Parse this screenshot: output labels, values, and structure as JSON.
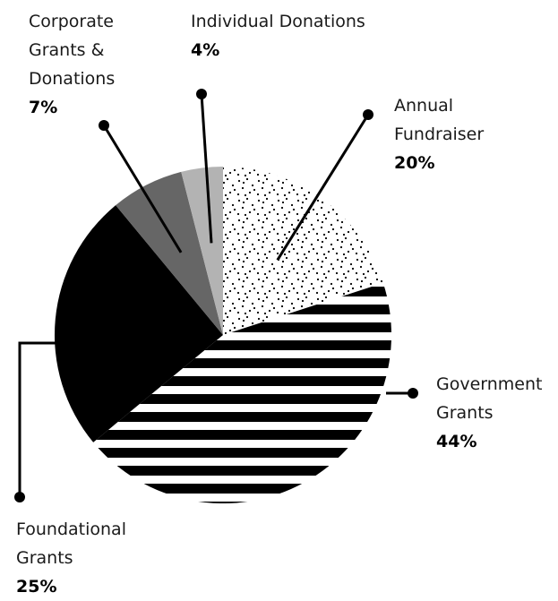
{
  "chart_data": {
    "type": "pie",
    "title": "",
    "slices": [
      {
        "label_lines": [
          "Annual",
          "Fundraiser"
        ],
        "value": 20,
        "value_label": "20%",
        "pattern": "dots"
      },
      {
        "label_lines": [
          "Government",
          "Grants"
        ],
        "value": 44,
        "value_label": "44%",
        "pattern": "stripes"
      },
      {
        "label_lines": [
          "Foundational",
          "Grants"
        ],
        "value": 25,
        "value_label": "25%",
        "pattern": "solid-black"
      },
      {
        "label_lines": [
          "Corporate",
          "Grants &",
          "Donations"
        ],
        "value": 7,
        "value_label": "7%",
        "pattern": "dark-gray"
      },
      {
        "label_lines": [
          "Individual Donations"
        ],
        "value": 4,
        "value_label": "4%",
        "pattern": "light-gray"
      }
    ],
    "start_angle_deg": 0,
    "direction": "clockwise",
    "colors": {
      "black": "#000000",
      "dark_gray": "#666666",
      "light_gray": "#b3b3b3",
      "white": "#ffffff"
    }
  }
}
